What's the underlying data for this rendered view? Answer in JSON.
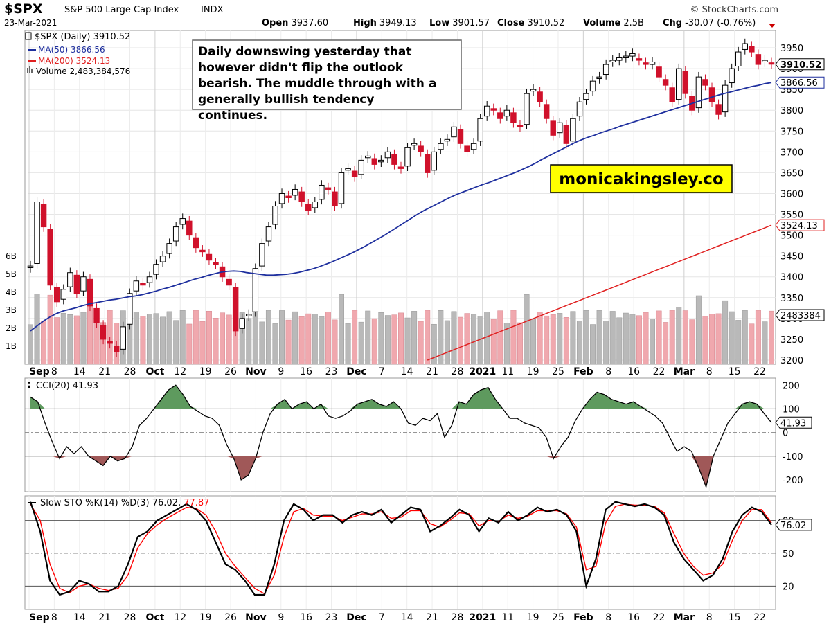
{
  "header": {
    "symbol": "$SPX",
    "name": "S&P 500 Large Cap Index",
    "exchange": "INDX",
    "date": "23-Mar-2021",
    "brand": "© StockCharts.com",
    "stats": [
      {
        "label": "Open",
        "value": "3937.60"
      },
      {
        "label": "High",
        "value": "3949.13"
      },
      {
        "label": "Low",
        "value": "3901.57"
      },
      {
        "label": "Close",
        "value": "3910.52"
      },
      {
        "label": "Volume",
        "value": "2.5B"
      },
      {
        "label": "Chg",
        "value": "-30.07 (-0.76%)"
      }
    ]
  },
  "legend": {
    "price": "$SPX (Daily) 3910.52",
    "ma50": "MA(50) 3866.56",
    "ma200": "MA(200) 3524.13",
    "volume": "Volume 2,483,384,576"
  },
  "annotation": "Daily downswing yesterday that however didn't flip the outlook bearish. The muddle through with a generally bullish tendency continues.",
  "watermark": "monicakingsley.co",
  "colors": {
    "up": "#ffffff",
    "down": "#d0112b",
    "ma50": "#1e2f9e",
    "ma200": "#e02020",
    "vol_up": "#b9b9b9",
    "vol_down": "#f0a8ae",
    "cci_fill_up": "#5e9a5e",
    "cci_fill_down": "#a05858",
    "sto_d": "#ff0000",
    "watermark_bg": "#ffff00"
  },
  "x_axis": {
    "labels": [
      "Sep",
      "8",
      "14",
      "21",
      "28",
      "Oct",
      "12",
      "19",
      "26",
      "Nov",
      "9",
      "16",
      "23",
      "Dec",
      "7",
      "14",
      "21",
      "28",
      "2021",
      "11",
      "19",
      "25",
      "Feb",
      "8",
      "16",
      "22",
      "Mar",
      "8",
      "15",
      "22"
    ]
  },
  "cci_panel": {
    "title": "CCI(20) 41.93",
    "value_tag": "41.93",
    "ticks": [
      "200",
      "100",
      "0",
      "-100",
      "-200"
    ]
  },
  "sto_panel": {
    "title_prefix": "Slow STO %K(14) %D(3) 76.02,",
    "title_d": "77.87",
    "value_tag": "76.02",
    "ticks": [
      "80",
      "50",
      "20"
    ]
  },
  "chart_data": [
    {
      "type": "candlestick",
      "title": "$SPX (Daily) 3910.52",
      "ylim": [
        3190,
        3985
      ],
      "y_ticks": [
        3200,
        3250,
        3300,
        3350,
        3400,
        3450,
        3500,
        3550,
        3600,
        3650,
        3700,
        3750,
        3800,
        3850,
        3900,
        3950
      ],
      "value_tags": {
        "close": "3910.52",
        "ma50": "3866.56",
        "ma200": "3524.13",
        "volume": "2483384"
      },
      "volume_ticks": [
        "1B",
        "2B",
        "3B",
        "4B",
        "5B",
        "6B"
      ],
      "series": [
        {
          "name": "MA(50)",
          "values": [
            3270,
            3282,
            3294,
            3304,
            3312,
            3318,
            3322,
            3326,
            3331,
            3335,
            3338,
            3341,
            3344,
            3346,
            3349,
            3352,
            3354,
            3357,
            3361,
            3365,
            3370,
            3374,
            3379,
            3384,
            3389,
            3394,
            3398,
            3403,
            3407,
            3411,
            3413,
            3414,
            3413,
            3410,
            3408,
            3406,
            3404,
            3404,
            3405,
            3406,
            3408,
            3411,
            3415,
            3419,
            3424,
            3430,
            3436,
            3443,
            3450,
            3457,
            3465,
            3473,
            3482,
            3491,
            3500,
            3510,
            3520,
            3530,
            3540,
            3550,
            3559,
            3567,
            3575,
            3583,
            3591,
            3598,
            3604,
            3610,
            3616,
            3622,
            3627,
            3633,
            3639,
            3645,
            3651,
            3658,
            3665,
            3673,
            3682,
            3690,
            3698,
            3706,
            3714,
            3722,
            3729,
            3735,
            3740,
            3746,
            3751,
            3756,
            3762,
            3767,
            3772,
            3777,
            3782,
            3787,
            3792,
            3797,
            3802,
            3807,
            3812,
            3817,
            3822,
            3827,
            3832,
            3837,
            3841,
            3845,
            3849,
            3853,
            3857,
            3860,
            3864,
            3866.56
          ]
        },
        {
          "name": "MA(200)",
          "values": [
            3200,
            3206,
            3212,
            3218,
            3224,
            3230,
            3236,
            3242,
            3248,
            3254,
            3260,
            3266,
            3272,
            3278,
            3284,
            3290,
            3296,
            3302,
            3308,
            3314,
            3320,
            3326,
            3332,
            3338,
            3344,
            3350,
            3356,
            3362,
            3368,
            3374,
            3380,
            3386,
            3392,
            3398,
            3404,
            3410,
            3416,
            3422,
            3428,
            3434,
            3440,
            3446,
            3452,
            3458,
            3464,
            3470,
            3476,
            3482,
            3488,
            3494,
            3500,
            3506,
            3512,
            3518,
            3524.13
          ]
        },
        {
          "name": "Close",
          "values": [
            3426,
            3580,
            3520,
            3380,
            3340,
            3370,
            3410,
            3360,
            3400,
            3330,
            3290,
            3250,
            3240,
            3220,
            3280,
            3360,
            3390,
            3380,
            3400,
            3430,
            3450,
            3480,
            3520,
            3540,
            3500,
            3470,
            3460,
            3440,
            3430,
            3400,
            3380,
            3270,
            3300,
            3310,
            3420,
            3480,
            3520,
            3570,
            3600,
            3590,
            3610,
            3580,
            3560,
            3580,
            3620,
            3610,
            3570,
            3650,
            3660,
            3640,
            3680,
            3690,
            3670,
            3680,
            3700,
            3670,
            3660,
            3710,
            3720,
            3700,
            3650,
            3700,
            3720,
            3730,
            3760,
            3720,
            3700,
            3720,
            3780,
            3810,
            3800,
            3780,
            3800,
            3770,
            3760,
            3840,
            3850,
            3820,
            3780,
            3740,
            3770,
            3720,
            3780,
            3820,
            3840,
            3870,
            3880,
            3910,
            3920,
            3920,
            3930,
            3930,
            3920,
            3910,
            3910,
            3880,
            3860,
            3820,
            3900,
            3840,
            3800,
            3880,
            3860,
            3820,
            3790,
            3860,
            3900,
            3940,
            3960,
            3940,
            3910,
            3920,
            3910.52
          ]
        }
      ]
    },
    {
      "type": "line",
      "title": "CCI(20) 41.93",
      "ylim": [
        -250,
        230
      ],
      "series": [
        {
          "name": "CCI(20)",
          "values": [
            150,
            130,
            40,
            -40,
            -110,
            -60,
            -90,
            -60,
            -100,
            -120,
            -140,
            -100,
            -120,
            -110,
            -60,
            30,
            60,
            100,
            140,
            180,
            200,
            160,
            110,
            90,
            70,
            60,
            30,
            -50,
            -110,
            -200,
            -180,
            -110,
            0,
            80,
            120,
            140,
            100,
            120,
            130,
            100,
            120,
            70,
            60,
            70,
            90,
            120,
            130,
            140,
            120,
            110,
            130,
            100,
            40,
            30,
            60,
            50,
            80,
            -20,
            30,
            130,
            120,
            160,
            180,
            190,
            140,
            100,
            60,
            60,
            40,
            30,
            20,
            -20,
            -110,
            -60,
            -20,
            50,
            100,
            140,
            170,
            160,
            140,
            130,
            120,
            130,
            110,
            90,
            70,
            40,
            -20,
            -80,
            -60,
            -80,
            -150,
            -230,
            -100,
            -30,
            40,
            80,
            120,
            130,
            120,
            80,
            41.93
          ]
        }
      ]
    },
    {
      "type": "line",
      "title": "Slow STO %K(14) %D(3) 76.02, 77.87",
      "ylim": [
        0,
        100
      ],
      "series": [
        {
          "name": "%K(14)",
          "values": [
            97,
            70,
            25,
            12,
            15,
            25,
            22,
            15,
            15,
            20,
            40,
            65,
            70,
            80,
            85,
            90,
            95,
            90,
            80,
            60,
            40,
            35,
            25,
            12,
            12,
            40,
            80,
            95,
            90,
            80,
            85,
            85,
            78,
            85,
            88,
            85,
            90,
            78,
            85,
            92,
            90,
            70,
            75,
            82,
            90,
            85,
            70,
            82,
            78,
            88,
            80,
            85,
            92,
            88,
            90,
            85,
            70,
            20,
            45,
            90,
            97,
            95,
            93,
            95,
            92,
            85,
            60,
            45,
            35,
            25,
            30,
            45,
            70,
            85,
            92,
            88,
            76.02
          ]
        },
        {
          "name": "%D(3)",
          "values": [
            95,
            80,
            40,
            18,
            14,
            20,
            22,
            18,
            16,
            18,
            30,
            55,
            68,
            76,
            82,
            87,
            92,
            91,
            85,
            70,
            50,
            38,
            28,
            18,
            13,
            30,
            65,
            88,
            91,
            85,
            84,
            84,
            80,
            83,
            86,
            86,
            88,
            82,
            83,
            89,
            89,
            77,
            74,
            80,
            87,
            86,
            75,
            80,
            79,
            85,
            82,
            84,
            89,
            89,
            89,
            86,
            74,
            35,
            38,
            78,
            93,
            95,
            94,
            94,
            93,
            87,
            68,
            50,
            38,
            30,
            32,
            40,
            62,
            80,
            90,
            90,
            77.87
          ]
        }
      ]
    }
  ]
}
